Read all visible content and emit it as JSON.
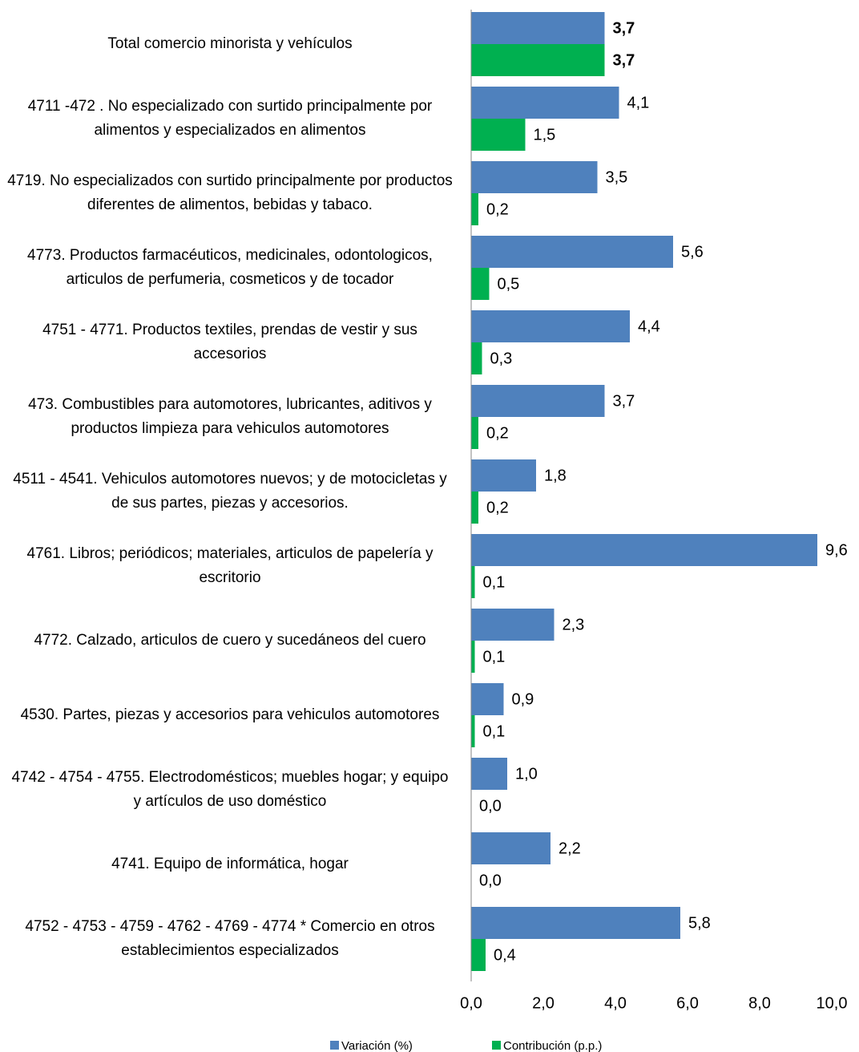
{
  "chart_data": {
    "type": "bar",
    "orientation": "horizontal",
    "categories": [
      "Total comercio minorista y vehículos",
      "4711 -472 .  No especializado con surtido principalmente por alimentos y especializados en alimentos",
      "4719. No especializados con surtido principalmente por productos diferentes de alimentos, bebidas y tabaco.",
      "4773. Productos farmacéuticos, medicinales, odontologicos, articulos de perfumeria, cosmeticos y de tocador",
      "4751 - 4771. Productos textiles, prendas de vestir y sus accesorios",
      "473.  Combustibles para automotores, lubricantes, aditivos y productos limpieza para vehiculos automotores",
      "4511 - 4541. Vehiculos automotores nuevos; y de motocicletas y de sus partes, piezas y accesorios.",
      "4761. Libros; periódicos; materiales, articulos de papelería y escritorio",
      "4772. Calzado, articulos de cuero y sucedáneos del cuero",
      "4530. Partes, piezas y accesorios para vehiculos automotores",
      "4742 - 4754 - 4755. Electrodomésticos; muebles hogar; y equipo y artículos de uso doméstico",
      "4741. Equipo de informática, hogar",
      "4752 - 4753 - 4759 - 4762 - 4769 - 4774 * Comercio en otros establecimientos especializados"
    ],
    "series": [
      {
        "name": "Variación (%)",
        "color": "#4f81bd",
        "values": [
          3.7,
          4.1,
          3.5,
          5.6,
          4.4,
          3.7,
          1.8,
          9.6,
          2.3,
          0.9,
          1.0,
          2.2,
          5.8
        ],
        "value_labels": [
          "3,7",
          "4,1",
          "3,5",
          "5,6",
          "4,4",
          "3,7",
          "1,8",
          "9,6",
          "2,3",
          "0,9",
          "1,0",
          "2,2",
          "5,8"
        ]
      },
      {
        "name": "Contribución (p.p.)",
        "color": "#00b050",
        "values": [
          3.7,
          1.5,
          0.2,
          0.5,
          0.3,
          0.2,
          0.2,
          0.1,
          0.1,
          0.1,
          0.0,
          0.0,
          0.4
        ],
        "value_labels": [
          "3,7",
          "1,5",
          "0,2",
          "0,5",
          "0,3",
          "0,2",
          "0,2",
          "0,1",
          "0,1",
          "0,1",
          "0,0",
          "0,0",
          "0,4"
        ]
      }
    ],
    "xlim": [
      0,
      10
    ],
    "xticks": [
      {
        "value": 0,
        "label": "0,0"
      },
      {
        "value": 2,
        "label": "2,0"
      },
      {
        "value": 4,
        "label": "4,0"
      },
      {
        "value": 6,
        "label": "6,0"
      },
      {
        "value": 8,
        "label": "8,0"
      },
      {
        "value": 10,
        "label": "10,0"
      }
    ],
    "legend": "bottom"
  }
}
